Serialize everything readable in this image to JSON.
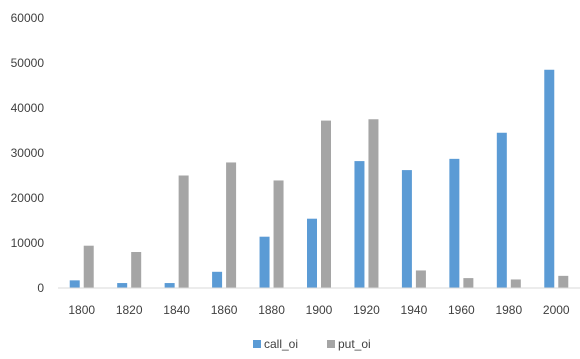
{
  "chart_data": {
    "type": "bar",
    "title": "",
    "xlabel": "",
    "ylabel": "",
    "categories": [
      "1800",
      "1820",
      "1840",
      "1860",
      "1880",
      "1900",
      "1920",
      "1940",
      "1960",
      "1980",
      "2000"
    ],
    "series": [
      {
        "name": "call_oi",
        "color": "#5B9BD5",
        "values": [
          1700,
          1100,
          1100,
          3600,
          11400,
          15400,
          28200,
          26200,
          28700,
          34500,
          48500
        ]
      },
      {
        "name": "put_oi",
        "color": "#A5A5A5",
        "values": [
          9400,
          8000,
          25000,
          27900,
          23900,
          37200,
          37500,
          3900,
          2200,
          1900,
          2700
        ]
      }
    ],
    "ylim": [
      0,
      60000
    ],
    "yticks": [
      "0",
      "10000",
      "20000",
      "30000",
      "40000",
      "50000",
      "60000"
    ],
    "grid": false,
    "legend_position": "bottom"
  }
}
